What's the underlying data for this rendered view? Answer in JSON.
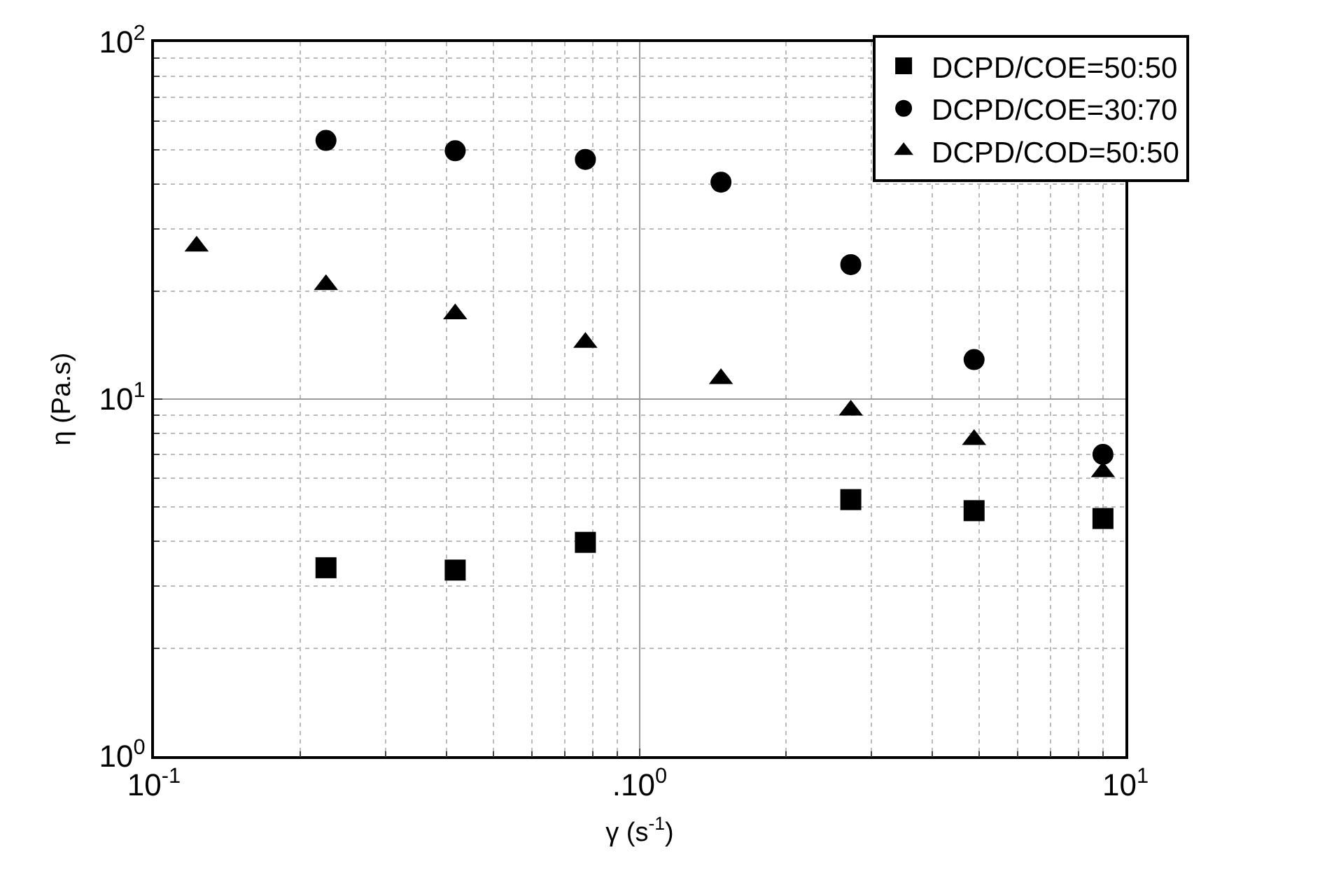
{
  "chart_data": {
    "type": "scatter",
    "xlabel": "γ (s$^{-1}$)",
    "ylabel": "η (Pa.s)",
    "log": "xy",
    "xlim": [
      0.1,
      10
    ],
    "ylim": [
      1,
      100
    ],
    "xticks": [
      {
        "value": 0.1,
        "label": "10$^{-1}$"
      },
      {
        "value": 1,
        "label": ".10$^{0}$"
      },
      {
        "value": 10,
        "label": "10$^{1}$"
      }
    ],
    "yticks": [
      {
        "value": 1,
        "label": "10$^{0}$"
      },
      {
        "value": 10,
        "label": "10$^{1}$"
      },
      {
        "value": 100,
        "label": "10$^{2}$"
      }
    ],
    "grid": true,
    "legend": "top right",
    "series": [
      {
        "name": "DCPD/COE=50:50",
        "color": "#000000",
        "marker": "square",
        "x": [
          0.226,
          0.417,
          0.773,
          2.72,
          4.88,
          8.99
        ],
        "values": [
          3.37,
          3.32,
          3.97,
          5.23,
          4.87,
          4.63
        ]
      },
      {
        "name": "DCPD/COE=30:70",
        "color": "#000000",
        "marker": "circle",
        "x": [
          0.226,
          0.417,
          0.773,
          1.47,
          2.72,
          4.88,
          8.99
        ],
        "values": [
          53,
          49.6,
          46.9,
          40.5,
          23.8,
          12.9,
          7.0
        ]
      },
      {
        "name": "DCPD/COD=50:50",
        "color": "#000000",
        "marker": "triangle",
        "x": [
          0.1224,
          0.226,
          0.417,
          0.773,
          1.47,
          2.72,
          4.88,
          8.99
        ],
        "values": [
          26.8,
          20.9,
          17.3,
          14.4,
          11.4,
          9.3,
          7.7,
          6.25
        ]
      }
    ]
  }
}
